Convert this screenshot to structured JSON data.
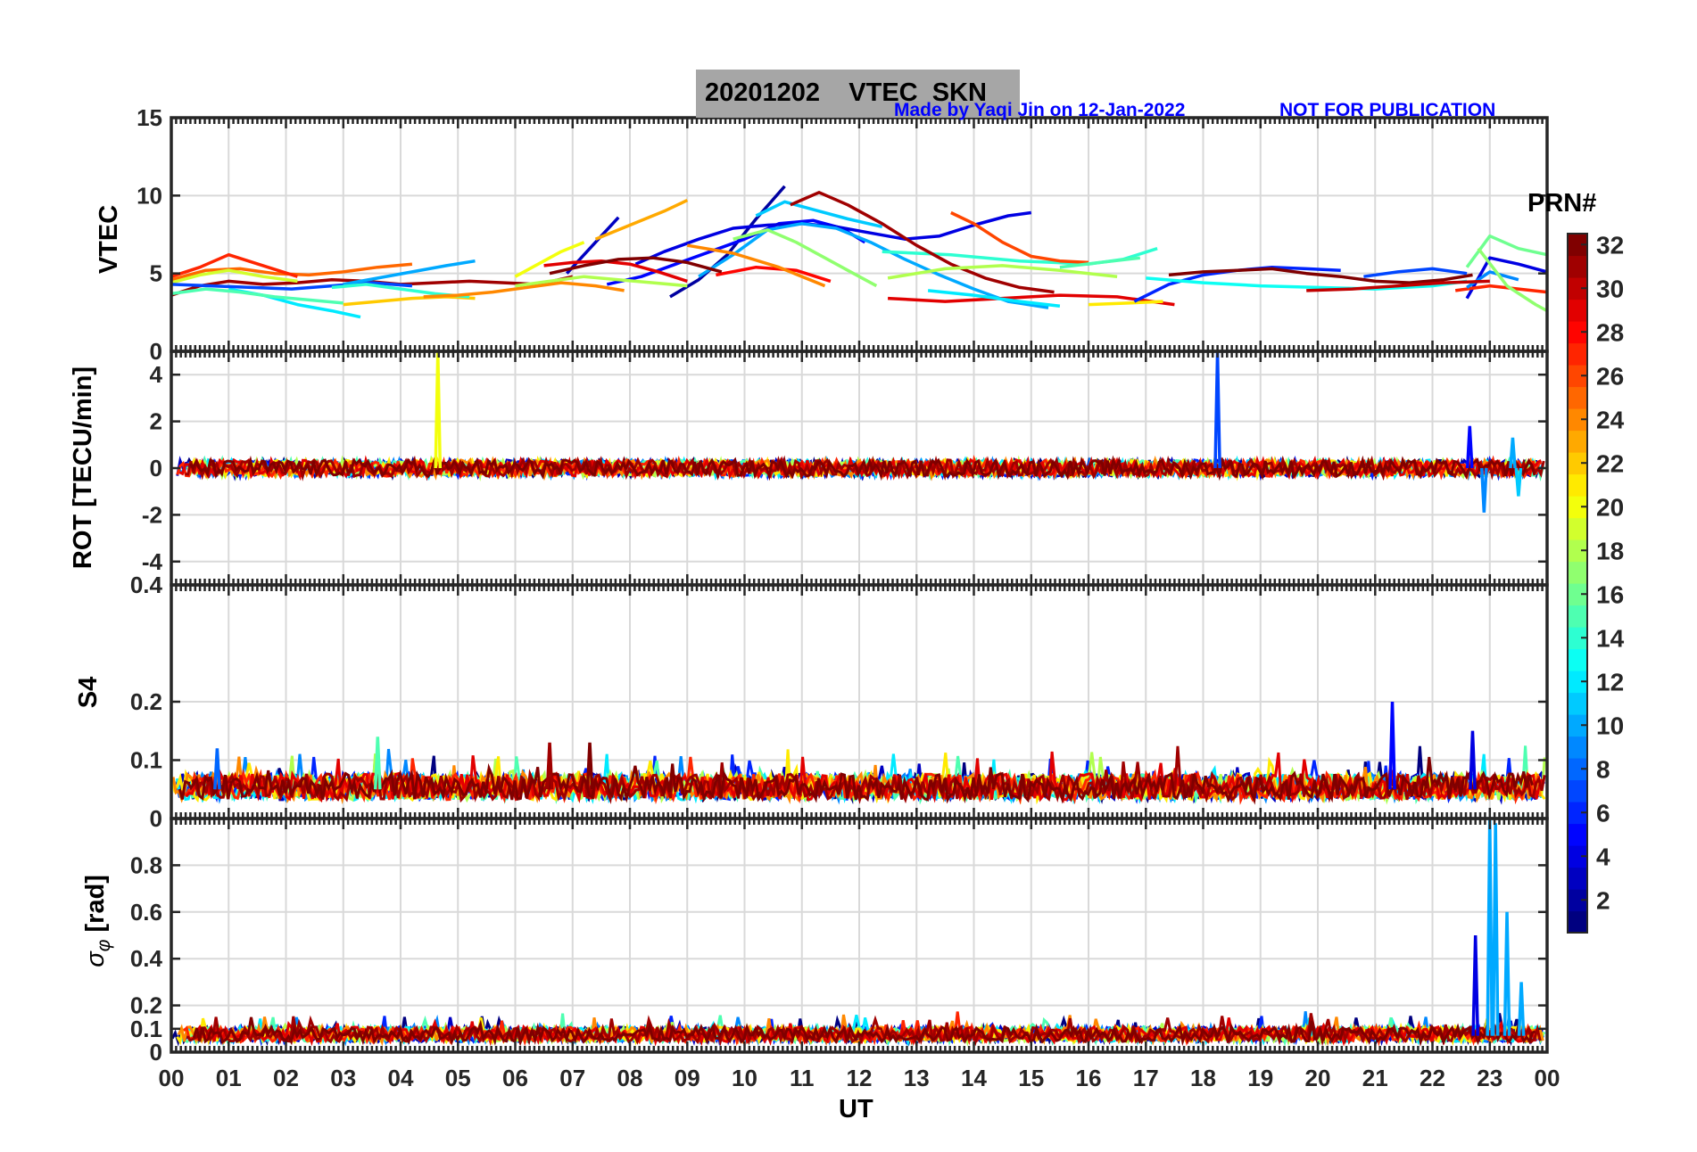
{
  "header": {
    "title": "20201202    VTEC  SKN",
    "credit": "Made by Yaqi Jin on 12-Jan-2022",
    "notice": "NOT FOR PUBLICATION"
  },
  "x_axis": {
    "label": "UT",
    "ticks": [
      "00",
      "01",
      "02",
      "03",
      "04",
      "05",
      "06",
      "07",
      "08",
      "09",
      "10",
      "11",
      "12",
      "13",
      "14",
      "15",
      "16",
      "17",
      "18",
      "19",
      "20",
      "21",
      "22",
      "23",
      "00"
    ]
  },
  "colorbar": {
    "title": "PRN#",
    "range": [
      1,
      32
    ],
    "tick_labels": [
      "2",
      "4",
      "6",
      "8",
      "10",
      "12",
      "14",
      "16",
      "18",
      "20",
      "22",
      "24",
      "26",
      "28",
      "30",
      "32"
    ],
    "colormap": "jet"
  },
  "chart_data": [
    {
      "type": "line",
      "panel": "VTEC",
      "ylabel": "VTEC",
      "ylim": [
        0,
        15
      ],
      "y_ticks": [
        "0",
        "5",
        "10",
        "15"
      ],
      "xlim": [
        0,
        24
      ],
      "grid": true,
      "series": [
        {
          "prn": 3,
          "x": [
            6.9,
            7.2,
            7.5,
            7.8
          ],
          "y": [
            5.0,
            6.2,
            7.4,
            8.6
          ]
        },
        {
          "prn": 2,
          "x": [
            8.7,
            9.2,
            9.7,
            10.2,
            10.7
          ],
          "y": [
            3.5,
            4.6,
            6.2,
            8.5,
            10.6
          ]
        },
        {
          "prn": 5,
          "x": [
            7.6,
            8.2,
            8.8,
            9.4,
            10.0,
            10.6,
            11.2,
            11.7,
            12.1
          ],
          "y": [
            4.3,
            4.8,
            5.6,
            6.4,
            7.2,
            8.2,
            8.4,
            7.9,
            7.0
          ]
        },
        {
          "prn": 4,
          "x": [
            8.1,
            8.6,
            9.2,
            9.8,
            10.4,
            11.0,
            11.6,
            12.2,
            12.8,
            13.4,
            14.0,
            14.6,
            15.0
          ],
          "y": [
            5.6,
            6.4,
            7.2,
            7.9,
            8.1,
            8.2,
            8.0,
            7.6,
            7.2,
            7.4,
            8.1,
            8.7,
            8.9
          ]
        },
        {
          "prn": 10,
          "x": [
            9.2,
            9.8,
            10.4,
            11.0,
            11.6,
            12.2,
            12.8,
            13.4,
            14.0,
            14.6,
            15.3
          ],
          "y": [
            4.8,
            6.2,
            7.8,
            8.2,
            7.9,
            7.0,
            5.9,
            4.9,
            4.0,
            3.2,
            2.8
          ]
        },
        {
          "prn": 11,
          "x": [
            10.2,
            10.7,
            11.2,
            11.8,
            12.4
          ],
          "y": [
            8.7,
            9.6,
            9.1,
            8.5,
            8.0
          ]
        },
        {
          "prn": 14,
          "x": [
            12.4,
            13.0,
            13.6,
            14.2,
            14.8,
            15.4,
            16.0,
            16.6,
            17.2
          ],
          "y": [
            6.4,
            6.3,
            6.2,
            6.0,
            5.8,
            5.7,
            5.6,
            5.9,
            6.6
          ]
        },
        {
          "prn": 17,
          "x": [
            9.8,
            10.4,
            10.9,
            11.4,
            11.9,
            12.3
          ],
          "y": [
            7.2,
            7.8,
            7.0,
            6.0,
            5.0,
            4.2
          ]
        },
        {
          "prn": 23,
          "x": [
            7.4,
            8.0,
            8.6,
            9.0
          ],
          "y": [
            7.2,
            8.1,
            9.0,
            9.7
          ]
        },
        {
          "prn": 20,
          "x": [
            6.0,
            6.4,
            6.8,
            7.2
          ],
          "y": [
            4.8,
            5.6,
            6.4,
            7.0
          ]
        },
        {
          "prn": 26,
          "x": [
            13.6,
            14.0,
            14.5,
            15.0,
            15.5,
            16.0
          ],
          "y": [
            8.9,
            8.2,
            7.0,
            6.1,
            5.8,
            5.7
          ]
        },
        {
          "prn": 31,
          "x": [
            10.8,
            11.3,
            11.8,
            12.4,
            13.0,
            13.6,
            14.2,
            14.8,
            15.4
          ],
          "y": [
            9.4,
            10.2,
            9.4,
            8.2,
            6.8,
            5.6,
            4.7,
            4.1,
            3.8
          ]
        },
        {
          "prn": 28,
          "x": [
            9.5,
            10.2,
            10.9,
            11.5
          ],
          "y": [
            4.9,
            5.4,
            5.2,
            4.5
          ]
        },
        {
          "prn": 24,
          "x": [
            9.0,
            9.8,
            10.6,
            11.4
          ],
          "y": [
            6.8,
            6.3,
            5.4,
            4.2
          ]
        },
        {
          "prn": 29,
          "x": [
            12.5,
            13.5,
            14.5,
            15.5,
            16.5,
            17.5
          ],
          "y": [
            3.4,
            3.2,
            3.4,
            3.6,
            3.5,
            3.0
          ]
        },
        {
          "prn": 12,
          "x": [
            13.2,
            14.0,
            14.8,
            15.5
          ],
          "y": [
            3.9,
            3.6,
            3.2,
            2.9
          ]
        },
        {
          "prn": 18,
          "x": [
            12.5,
            13.5,
            14.5,
            15.5,
            16.5
          ],
          "y": [
            4.7,
            5.3,
            5.5,
            5.2,
            4.8
          ]
        },
        {
          "prn": 15,
          "x": [
            15.5,
            16.2,
            16.9
          ],
          "y": [
            5.4,
            5.7,
            6.0
          ]
        },
        {
          "prn": 21,
          "x": [
            16.0,
            16.7,
            17.3
          ],
          "y": [
            3.0,
            3.1,
            3.2
          ]
        },
        {
          "prn": 6,
          "x": [
            16.8,
            17.4,
            18.0,
            18.6,
            19.2,
            19.8,
            20.4
          ],
          "y": [
            3.2,
            4.3,
            4.9,
            5.2,
            5.4,
            5.3,
            5.2
          ]
        },
        {
          "prn": 32,
          "x": [
            17.4,
            18.0,
            18.6,
            19.2,
            19.8,
            20.4,
            21.0,
            21.6,
            22.2,
            22.7
          ],
          "y": [
            4.9,
            5.1,
            5.2,
            5.3,
            5.0,
            4.8,
            4.5,
            4.4,
            4.6,
            4.9
          ]
        },
        {
          "prn": 13,
          "x": [
            17.0,
            18.0,
            19.0,
            20.0,
            21.0,
            22.0,
            22.6
          ],
          "y": [
            4.7,
            4.4,
            4.2,
            4.1,
            4.0,
            4.2,
            4.5
          ]
        },
        {
          "prn": 7,
          "x": [
            20.8,
            21.4,
            22.0,
            22.6
          ],
          "y": [
            4.8,
            5.1,
            5.3,
            5.0
          ]
        },
        {
          "prn": 4,
          "x": [
            22.6,
            23.0,
            23.5,
            24.0
          ],
          "y": [
            3.4,
            6.0,
            5.6,
            5.1
          ]
        },
        {
          "prn": 16,
          "x": [
            22.6,
            23.0,
            23.5,
            24.0
          ],
          "y": [
            5.4,
            7.4,
            6.6,
            6.2
          ]
        },
        {
          "prn": 27,
          "x": [
            22.4,
            23.0,
            23.5,
            24.0
          ],
          "y": [
            3.9,
            4.2,
            4.0,
            3.8
          ]
        },
        {
          "prn": 9,
          "x": [
            22.6,
            23.0,
            23.5
          ],
          "y": [
            4.1,
            5.1,
            4.6
          ]
        },
        {
          "prn": 17,
          "x": [
            22.8,
            23.3,
            23.8,
            24.0
          ],
          "y": [
            6.6,
            4.2,
            3.0,
            2.6
          ]
        },
        {
          "prn": 30,
          "x": [
            19.8,
            20.6,
            21.4,
            22.2,
            23.0
          ],
          "y": [
            3.9,
            4.0,
            4.2,
            4.4,
            4.5
          ]
        },
        {
          "prn": 25,
          "x": [
            0.0,
            0.6,
            1.2,
            1.8,
            2.4,
            3.0,
            3.6,
            4.2
          ],
          "y": [
            4.6,
            5.2,
            5.3,
            5.0,
            4.9,
            5.1,
            5.4,
            5.6
          ]
        },
        {
          "prn": 31,
          "x": [
            0.0,
            0.5,
            1.0,
            1.6,
            2.2,
            2.8,
            3.4,
            4.0,
            4.6,
            5.2,
            5.8,
            6.4,
            7.0
          ],
          "y": [
            3.6,
            4.2,
            4.5,
            4.3,
            4.4,
            4.6,
            4.5,
            4.3,
            4.4,
            4.5,
            4.4,
            4.3,
            4.8
          ]
        },
        {
          "prn": 27,
          "x": [
            0.0,
            0.5,
            1.0,
            1.6,
            2.2
          ],
          "y": [
            4.8,
            5.4,
            6.2,
            5.5,
            4.8
          ]
        },
        {
          "prn": 12,
          "x": [
            1.0,
            1.6,
            2.2,
            2.8,
            3.3
          ],
          "y": [
            4.0,
            3.6,
            3.0,
            2.6,
            2.2
          ]
        },
        {
          "prn": 15,
          "x": [
            0.0,
            0.6,
            1.2,
            1.8,
            2.4,
            3.0
          ],
          "y": [
            3.7,
            4.0,
            3.8,
            3.5,
            3.3,
            3.1
          ]
        },
        {
          "prn": 19,
          "x": [
            0.0,
            0.5,
            1.0,
            1.6,
            2.2
          ],
          "y": [
            4.4,
            4.9,
            5.2,
            4.8,
            4.5
          ]
        },
        {
          "prn": 7,
          "x": [
            0.0,
            0.7,
            1.4,
            2.1,
            2.8,
            3.5,
            4.2
          ],
          "y": [
            4.3,
            4.2,
            4.1,
            4.0,
            4.2,
            4.4,
            4.2
          ]
        },
        {
          "prn": 10,
          "x": [
            3.0,
            3.6,
            4.2,
            4.8,
            5.3
          ],
          "y": [
            4.3,
            4.7,
            5.1,
            5.5,
            5.8
          ]
        },
        {
          "prn": 22,
          "x": [
            3.0,
            3.6,
            4.2,
            4.8,
            5.3
          ],
          "y": [
            3.0,
            3.2,
            3.4,
            3.5,
            3.4
          ]
        },
        {
          "prn": 14,
          "x": [
            2.8,
            3.4,
            4.0,
            4.6,
            5.2
          ],
          "y": [
            4.1,
            4.3,
            4.0,
            3.7,
            3.5
          ]
        },
        {
          "prn": 24,
          "x": [
            4.4,
            5.0,
            5.6,
            6.2,
            6.8,
            7.4,
            7.9
          ],
          "y": [
            3.5,
            3.6,
            3.8,
            4.1,
            4.4,
            4.2,
            3.9
          ]
        },
        {
          "prn": 29,
          "x": [
            6.5,
            7.0,
            7.5,
            8.0,
            8.5,
            9.0
          ],
          "y": [
            5.5,
            5.7,
            5.8,
            5.6,
            5.1,
            4.5
          ]
        },
        {
          "prn": 32,
          "x": [
            6.6,
            7.2,
            7.8,
            8.4,
            9.0,
            9.6
          ],
          "y": [
            5.0,
            5.5,
            5.9,
            6.0,
            5.7,
            5.1
          ]
        },
        {
          "prn": 18,
          "x": [
            6.0,
            6.6,
            7.2,
            7.8,
            8.4,
            9.0
          ],
          "y": [
            4.2,
            4.5,
            4.8,
            4.6,
            4.4,
            4.2
          ]
        }
      ]
    },
    {
      "type": "line",
      "panel": "ROT",
      "ylabel": "ROT [TECU/min]",
      "ylim": [
        -5,
        5
      ],
      "y_ticks": [
        "-4",
        "-2",
        "0",
        "2",
        "4"
      ],
      "xlim": [
        0,
        24
      ],
      "grid": true,
      "baseline_noise_amplitude": 0.35,
      "spikes": [
        {
          "prn": 20,
          "x": 4.65,
          "y": 5.0
        },
        {
          "prn": 7,
          "x": 18.25,
          "y": 5.0
        },
        {
          "prn": 5,
          "x": 22.65,
          "y": 1.8
        },
        {
          "prn": 9,
          "x": 22.9,
          "y": -1.9
        },
        {
          "prn": 10,
          "x": 23.4,
          "y": 1.3
        },
        {
          "prn": 11,
          "x": 23.5,
          "y": -1.2
        }
      ]
    },
    {
      "type": "line",
      "panel": "S4",
      "ylabel": "S4",
      "ylim": [
        0,
        0.4
      ],
      "y_ticks": [
        "0",
        "0.1",
        "0.2",
        "0.4"
      ],
      "xlim": [
        0,
        24
      ],
      "grid": true,
      "baseline_level": 0.05,
      "spikes": [
        {
          "prn": 8,
          "x": 0.8,
          "y": 0.12
        },
        {
          "prn": 15,
          "x": 3.6,
          "y": 0.14
        },
        {
          "prn": 31,
          "x": 6.6,
          "y": 0.13
        },
        {
          "prn": 32,
          "x": 7.3,
          "y": 0.13
        },
        {
          "prn": 5,
          "x": 21.3,
          "y": 0.2
        },
        {
          "prn": 4,
          "x": 22.7,
          "y": 0.15
        }
      ]
    },
    {
      "type": "line",
      "panel": "sigma_phi",
      "ylabel": "σ",
      "ylabel_subscript": "φ",
      "ylabel_suffix": " [rad]",
      "ylim": [
        0,
        1.0
      ],
      "y_ticks": [
        "0",
        "0.1",
        "0.2",
        "0.4",
        "0.6",
        "0.8"
      ],
      "xlim": [
        0,
        24
      ],
      "grid": true,
      "baseline_level": 0.07,
      "spikes": [
        {
          "prn": 4,
          "x": 22.75,
          "y": 0.5
        },
        {
          "prn": 10,
          "x": 23.0,
          "y": 1.0
        },
        {
          "prn": 10,
          "x": 23.1,
          "y": 0.98
        },
        {
          "prn": 10,
          "x": 23.3,
          "y": 0.6
        },
        {
          "prn": 10,
          "x": 23.55,
          "y": 0.3
        }
      ]
    }
  ]
}
